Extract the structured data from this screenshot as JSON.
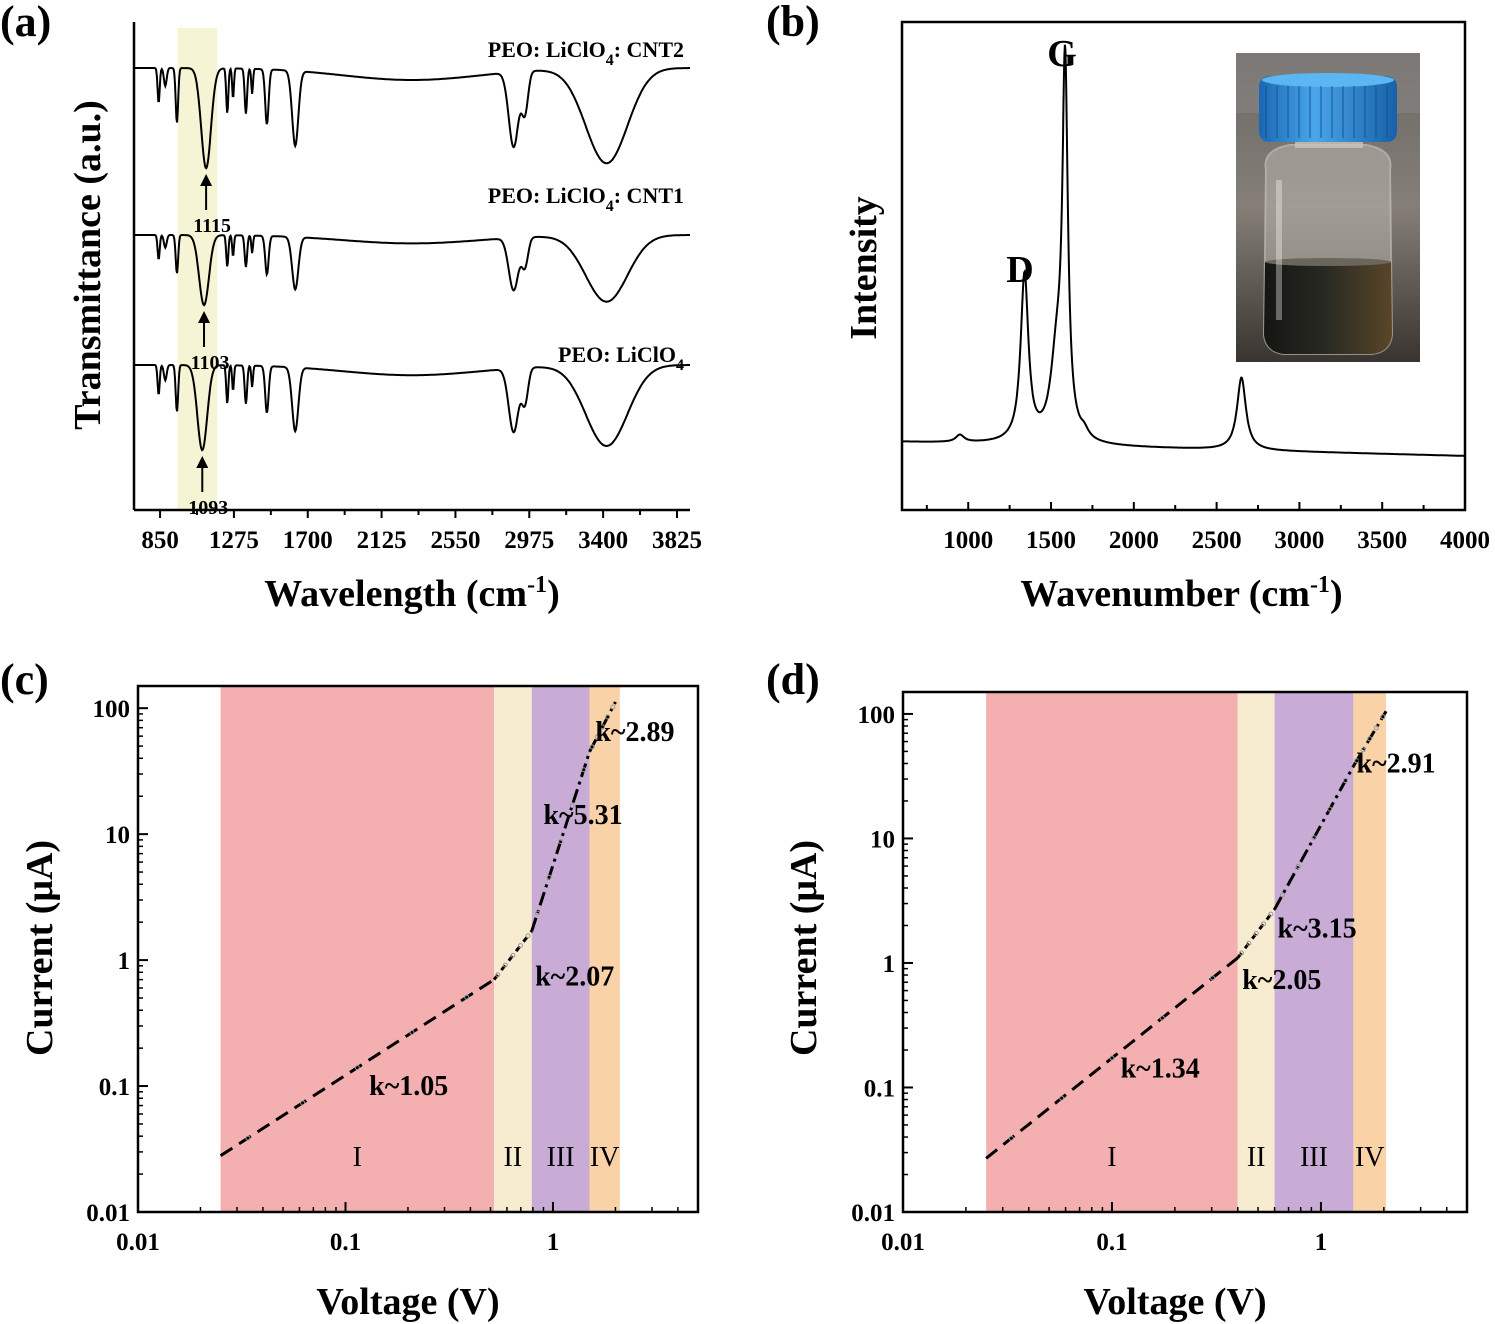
{
  "chart_data": [
    {
      "id": "a",
      "panel_label": "(a)",
      "type": "line",
      "xlabel": "Wavelength (cm",
      "xlabel_sup": "-1",
      "xlabel_end": ")",
      "ylabel": "Transmittance (a.u.)",
      "xlim": [
        700,
        3900
      ],
      "xticks": [
        "850",
        "1275",
        "1700",
        "2125",
        "2550",
        "2975",
        "3400",
        "3825"
      ],
      "highlight_band": [
        950,
        1180
      ],
      "highlight_color": "#f5f5d5",
      "series": [
        {
          "name": "PEO: LiClO",
          "sub": "4",
          "suffix": "",
          "peak_label": "1093",
          "peak_x": 1093
        },
        {
          "name": "PEO: LiClO",
          "sub": "4",
          "suffix": ": CNT1",
          "peak_label": "1103",
          "peak_x": 1103
        },
        {
          "name": "PEO: LiClO",
          "sub": "4",
          "suffix": ": CNT2",
          "peak_label": "1115",
          "peak_x": 1115
        }
      ]
    },
    {
      "id": "b",
      "panel_label": "(b)",
      "type": "line",
      "xlabel": "Wavenumber (cm",
      "xlabel_sup": "-1",
      "xlabel_end": ")",
      "ylabel": "Intensity",
      "xlim": [
        600,
        4000
      ],
      "xticks": [
        "1000",
        "1500",
        "2000",
        "2500",
        "3000",
        "3500",
        "4000"
      ],
      "peaks": [
        {
          "label": "D",
          "x": 1340,
          "relative_intensity": 0.46
        },
        {
          "label": "G",
          "x": 1585,
          "relative_intensity": 1.0
        },
        {
          "label": "",
          "x": 2650,
          "relative_intensity": 0.2
        }
      ],
      "inset": "photo-of-vial"
    },
    {
      "id": "c",
      "panel_label": "(c)",
      "type": "line",
      "xscale": "log",
      "yscale": "log",
      "xlabel": "Voltage (V)",
      "ylabel": "Current (μA)",
      "xlim": [
        0.01,
        5
      ],
      "ylim": [
        0.01,
        150
      ],
      "xticks": [
        {
          "v": 0.01,
          "label": "0.01"
        },
        {
          "v": 0.1,
          "label": "0.1"
        },
        {
          "v": 1,
          "label": "1"
        }
      ],
      "yticks": [
        {
          "v": 0.01,
          "label": "0.01"
        },
        {
          "v": 0.1,
          "label": "0.1"
        },
        {
          "v": 1,
          "label": "1"
        },
        {
          "v": 10,
          "label": "10"
        },
        {
          "v": 100,
          "label": "100"
        }
      ],
      "regions": [
        {
          "label": "I",
          "from": 0.025,
          "to": 0.52,
          "color": "#f4b0b0"
        },
        {
          "label": "II",
          "from": 0.52,
          "to": 0.79,
          "color": "#f8ecd0"
        },
        {
          "label": "III",
          "from": 0.79,
          "to": 1.5,
          "color": "#c8acd6"
        },
        {
          "label": "IV",
          "from": 1.5,
          "to": 2.1,
          "color": "#f9d2a8"
        }
      ],
      "points": [
        [
          0.025,
          0.028
        ],
        [
          0.52,
          0.7
        ],
        [
          0.79,
          1.7
        ],
        [
          1.5,
          45
        ],
        [
          2.0,
          112
        ]
      ],
      "k_labels": [
        {
          "text": "k~1.05",
          "x": 0.13,
          "y": 0.085
        },
        {
          "text": "k~2.07",
          "x": 0.82,
          "y": 0.63
        },
        {
          "text": "k~5.31",
          "x": 0.9,
          "y": 12
        },
        {
          "text": "k~2.89",
          "x": 1.6,
          "y": 55
        }
      ]
    },
    {
      "id": "d",
      "panel_label": "(d)",
      "type": "line",
      "xscale": "log",
      "yscale": "log",
      "xlabel": "Voltage (V)",
      "ylabel": "Current (μA)",
      "xlim": [
        0.01,
        5
      ],
      "ylim": [
        0.01,
        150
      ],
      "xticks": [
        {
          "v": 0.01,
          "label": "0.01"
        },
        {
          "v": 0.1,
          "label": "0.1"
        },
        {
          "v": 1,
          "label": "1"
        }
      ],
      "yticks": [
        {
          "v": 0.01,
          "label": "0.01"
        },
        {
          "v": 0.1,
          "label": "0.1"
        },
        {
          "v": 1,
          "label": "1"
        },
        {
          "v": 10,
          "label": "10"
        },
        {
          "v": 100,
          "label": "100"
        }
      ],
      "regions": [
        {
          "label": "I",
          "from": 0.025,
          "to": 0.4,
          "color": "#f4b0b0"
        },
        {
          "label": "II",
          "from": 0.4,
          "to": 0.6,
          "color": "#f8ecd0"
        },
        {
          "label": "III",
          "from": 0.6,
          "to": 1.43,
          "color": "#c8acd6"
        },
        {
          "label": "IV",
          "from": 1.43,
          "to": 2.05,
          "color": "#f9d2a8"
        }
      ],
      "points": [
        [
          0.025,
          0.027
        ],
        [
          0.4,
          1.1
        ],
        [
          0.6,
          2.7
        ],
        [
          1.43,
          38
        ],
        [
          2.05,
          105
        ]
      ],
      "k_labels": [
        {
          "text": "k~1.34",
          "x": 0.11,
          "y": 0.12
        },
        {
          "text": "k~2.05",
          "x": 0.42,
          "y": 0.62
        },
        {
          "text": "k~3.15",
          "x": 0.62,
          "y": 1.6
        },
        {
          "text": "k~2.91",
          "x": 1.48,
          "y": 34
        }
      ]
    }
  ]
}
